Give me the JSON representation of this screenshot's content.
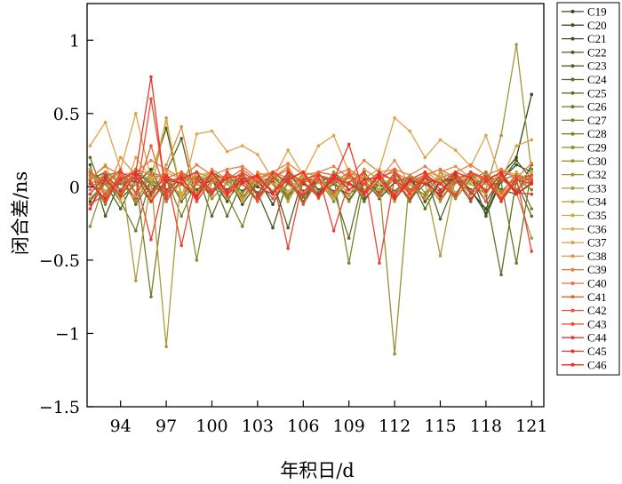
{
  "chart_data": {
    "type": "line",
    "xlabel": "年积日/d",
    "ylabel": "闭合差/ns",
    "xlim": [
      91.8,
      121.8
    ],
    "ylim": [
      -1.5,
      1.25
    ],
    "xticks": [
      94,
      97,
      100,
      103,
      106,
      109,
      112,
      115,
      118,
      121
    ],
    "xtick_labels": [
      "94",
      "97",
      "100",
      "103",
      "106",
      "109",
      "112",
      "115",
      "118",
      "121"
    ],
    "yticks": [
      -1.5,
      -1,
      -0.5,
      0,
      0.5,
      1
    ],
    "ytick_labels": [
      "−1.5",
      "−1",
      "−0.5",
      "0",
      "0.5",
      "1"
    ],
    "legend_position": "right",
    "x": [
      92,
      93,
      94,
      95,
      96,
      97,
      98,
      99,
      100,
      101,
      102,
      103,
      104,
      105,
      106,
      107,
      108,
      109,
      110,
      111,
      112,
      113,
      114,
      115,
      116,
      117,
      118,
      119,
      120,
      121
    ],
    "series": [
      {
        "name": "C19",
        "color": "#2f4a1a",
        "values": [
          0.12,
          -0.05,
          0.08,
          0.03,
          -0.1,
          0.05,
          0.02,
          -0.08,
          0.1,
          0.04,
          -0.03,
          0.06,
          -0.12,
          0.08,
          0.02,
          -0.05,
          0.1,
          -0.02,
          0.05,
          -0.08,
          0.03,
          0.07,
          -0.1,
          0.04,
          0.06,
          -0.03,
          -0.15,
          0.08,
          0.2,
          0.63
        ]
      },
      {
        "name": "C20",
        "color": "#374f1d",
        "values": [
          -0.1,
          0.06,
          -0.04,
          0.1,
          0.02,
          -0.06,
          0.08,
          -0.02,
          0.05,
          -0.1,
          0.07,
          0.0,
          -0.05,
          0.09,
          -0.03,
          0.04,
          -0.07,
          0.1,
          -0.04,
          0.02,
          -0.09,
          0.05,
          0.03,
          -0.06,
          0.08,
          -0.02,
          -0.18,
          0.05,
          0.15,
          0.1
        ]
      },
      {
        "name": "C21",
        "color": "#3f551f",
        "values": [
          0.05,
          0.1,
          -0.08,
          0.02,
          0.12,
          -0.1,
          0.04,
          0.06,
          -0.05,
          0.08,
          -0.12,
          0.03,
          0.05,
          -0.07,
          0.1,
          -0.02,
          0.04,
          -0.09,
          0.06,
          0.02,
          -0.05,
          0.08,
          -0.1,
          0.03,
          0.05,
          -0.04,
          0.07,
          -0.02,
          -0.05,
          0.15
        ]
      },
      {
        "name": "C22",
        "color": "#475b21",
        "values": [
          0.15,
          -0.2,
          0.05,
          -0.1,
          0.08,
          0.4,
          -0.05,
          0.1,
          -0.08,
          0.03,
          0.06,
          -0.04,
          -0.28,
          0.05,
          -0.1,
          0.08,
          0.02,
          -0.06,
          0.1,
          -0.03,
          0.05,
          -0.08,
          0.02,
          0.06,
          -0.05,
          0.09,
          -0.2,
          0.04,
          0.18,
          0.05
        ]
      },
      {
        "name": "C23",
        "color": "#506223",
        "values": [
          0.08,
          0.02,
          -0.15,
          0.06,
          -0.03,
          0.1,
          0.33,
          -0.1,
          0.05,
          -0.02,
          0.08,
          -0.06,
          0.04,
          -0.28,
          0.07,
          0.03,
          -0.05,
          0.1,
          -0.08,
          0.02,
          0.06,
          -0.04,
          0.09,
          -0.22,
          0.03,
          0.05,
          -0.1,
          0.07,
          -0.05,
          0.02
        ]
      },
      {
        "name": "C24",
        "color": "#596a25",
        "values": [
          -0.05,
          0.08,
          0.1,
          -0.12,
          0.04,
          -0.02,
          0.06,
          0.1,
          -0.2,
          0.05,
          -0.08,
          0.03,
          0.07,
          -0.04,
          0.1,
          -0.06,
          0.02,
          0.08,
          -0.1,
          0.05,
          -0.03,
          0.06,
          -0.15,
          0.04,
          0.08,
          -0.05,
          0.1,
          -0.08,
          0.03,
          -0.2
        ]
      },
      {
        "name": "C25",
        "color": "#626f28",
        "values": [
          0.2,
          -0.08,
          0.05,
          0.1,
          -0.06,
          0.08,
          -0.1,
          0.03,
          0.06,
          -0.2,
          0.04,
          -0.05,
          0.1,
          0.02,
          -0.07,
          0.05,
          -0.03,
          -0.35,
          0.08,
          -0.05,
          0.1,
          -0.02,
          0.06,
          -0.08,
          0.04,
          0.1,
          -0.06,
          -0.6,
          0.05,
          0.08
        ]
      },
      {
        "name": "C26",
        "color": "#6b772a",
        "values": [
          0.1,
          0.04,
          -0.1,
          -0.3,
          0.06,
          -0.05,
          0.08,
          0.02,
          -0.04,
          0.1,
          -0.07,
          0.05,
          -0.03,
          0.08,
          -0.1,
          0.04,
          0.06,
          -0.05,
          0.02,
          0.1,
          -0.08,
          0.03,
          0.07,
          -0.04,
          0.05,
          -0.1,
          0.08,
          0.03,
          -0.52,
          0.12
        ]
      },
      {
        "name": "C27",
        "color": "#757d2d",
        "values": [
          -0.15,
          0.1,
          0.02,
          0.06,
          -0.75,
          0.05,
          -0.08,
          0.1,
          -0.03,
          0.06,
          0.02,
          -0.1,
          0.08,
          -0.05,
          0.04,
          0.1,
          -0.06,
          0.03,
          -0.04,
          0.08,
          0.05,
          -0.1,
          0.06,
          0.02,
          -0.07,
          0.1,
          -0.03,
          0.05,
          0.08,
          -0.15
        ]
      },
      {
        "name": "C28",
        "color": "#7f8430",
        "values": [
          0.05,
          -0.12,
          0.08,
          -0.04,
          0.1,
          0.06,
          -0.2,
          0.04,
          0.08,
          -0.06,
          -0.27,
          0.05,
          0.02,
          -0.08,
          0.1,
          -0.03,
          0.06,
          -0.52,
          0.04,
          -0.05,
          0.08,
          0.02,
          -0.06,
          0.1,
          -0.04,
          0.05,
          0.03,
          -0.08,
          0.06,
          -0.02
        ]
      },
      {
        "name": "C29",
        "color": "#8c8a33",
        "values": [
          -0.27,
          0.05,
          -0.08,
          0.12,
          0.03,
          -0.06,
          0.1,
          -0.5,
          0.05,
          0.08,
          -0.04,
          0.06,
          0.1,
          -0.07,
          0.03,
          0.05,
          -0.1,
          0.08,
          0.02,
          -0.06,
          0.1,
          -0.04,
          0.07,
          0.03,
          -0.08,
          0.05,
          0.1,
          -0.03,
          0.06,
          0.04
        ]
      },
      {
        "name": "C30",
        "color": "#9a9036",
        "values": [
          0.08,
          0.02,
          0.1,
          -0.05,
          0.08,
          -0.1,
          0.04,
          0.06,
          -0.08,
          0.03,
          0.1,
          -0.05,
          0.07,
          0.02,
          -0.06,
          0.08,
          0.04,
          -0.1,
          0.05,
          0.02,
          -1.14,
          0.08,
          -0.04,
          0.06,
          0.1,
          -0.05,
          0.03,
          0.07,
          -0.02,
          0.05
        ]
      },
      {
        "name": "C32",
        "color": "#a4953a",
        "values": [
          0.1,
          -0.06,
          0.04,
          -0.1,
          0.08,
          0.03,
          -0.05,
          0.1,
          0.06,
          -0.08,
          0.02,
          0.05,
          -0.03,
          0.09,
          0.04,
          -0.07,
          0.1,
          0.02,
          -0.06,
          0.08,
          -0.04,
          0.06,
          0.03,
          -0.1,
          0.05,
          0.08,
          -0.02,
          0.35,
          0.97,
          0.1
        ]
      },
      {
        "name": "C33",
        "color": "#ae9a3d",
        "values": [
          -0.08,
          0.03,
          0.12,
          -0.64,
          0.05,
          -1.09,
          0.1,
          -0.04,
          0.07,
          0.02,
          -0.05,
          0.09,
          -0.03,
          0.06,
          0.1,
          -0.08,
          0.04,
          0.07,
          -0.02,
          0.05,
          -0.1,
          0.08,
          0.03,
          -0.47,
          0.06,
          0.02,
          -0.05,
          0.1,
          -0.04,
          -0.35
        ]
      },
      {
        "name": "C34",
        "color": "#b89f40",
        "values": [
          0.02,
          0.08,
          -0.05,
          0.1,
          -0.03,
          0.47,
          -0.08,
          0.05,
          0.1,
          -0.04,
          0.07,
          0.02,
          0.06,
          -0.1,
          0.08,
          0.03,
          -0.05,
          0.1,
          0.04,
          -0.07,
          0.06,
          0.02,
          -0.08,
          0.1,
          0.05,
          -0.03,
          0.07,
          -0.1,
          0.04,
          0.06
        ]
      },
      {
        "name": "C35",
        "color": "#c9a744",
        "values": [
          0.12,
          -0.03,
          0.07,
          0.02,
          -0.08,
          0.1,
          0.05,
          -0.06,
          0.03,
          0.08,
          -0.1,
          0.06,
          0.02,
          -0.04,
          0.1,
          0.07,
          -0.05,
          0.03,
          0.08,
          -0.02,
          0.06,
          -0.08,
          0.1,
          0.04,
          -0.05,
          0.07,
          0.02,
          -0.06,
          0.1,
          0.03
        ]
      },
      {
        "name": "C36",
        "color": "#d9ad48",
        "values": [
          0.05,
          0.15,
          -0.1,
          0.2,
          0.06,
          0.45,
          -0.05,
          0.08,
          0.1,
          -0.06,
          0.04,
          0.08,
          0.1,
          -0.03,
          0.06,
          0.05,
          -0.08,
          0.1,
          0.04,
          0.02,
          0.06,
          -0.05,
          0.1,
          0.07,
          -0.04,
          0.03,
          0.08,
          -0.06,
          0.05,
          0.1
        ]
      },
      {
        "name": "C37",
        "color": "#e0a248",
        "values": [
          0.28,
          0.44,
          0.12,
          0.5,
          0.05,
          0.1,
          -0.08,
          0.36,
          0.38,
          0.24,
          0.28,
          0.22,
          0.05,
          0.25,
          0.08,
          0.28,
          0.35,
          0.1,
          0.06,
          0.12,
          0.47,
          0.38,
          0.2,
          0.32,
          0.25,
          0.14,
          0.35,
          0.05,
          0.28,
          0.32
        ]
      },
      {
        "name": "C38",
        "color": "#e39044",
        "values": [
          0.1,
          -0.05,
          0.2,
          0.08,
          -0.1,
          0.15,
          0.41,
          -0.06,
          0.12,
          0.05,
          -0.08,
          0.1,
          0.06,
          0.14,
          -0.04,
          0.1,
          0.08,
          -0.06,
          0.12,
          0.05,
          0.18,
          0.02,
          -0.08,
          0.1,
          0.14,
          0.06,
          -0.04,
          0.12,
          0.08,
          0.05
        ]
      },
      {
        "name": "C39",
        "color": "#e57f40",
        "values": [
          0.06,
          0.14,
          0.08,
          0.1,
          0.18,
          0.12,
          0.06,
          0.15,
          0.08,
          0.12,
          0.14,
          0.06,
          0.1,
          0.16,
          0.08,
          0.1,
          0.14,
          0.06,
          0.18,
          0.1,
          0.12,
          0.08,
          0.14,
          0.06,
          0.1,
          0.15,
          0.08,
          0.12,
          0.06,
          0.16
        ]
      },
      {
        "name": "C40",
        "color": "#e76f3d",
        "values": [
          -0.02,
          0.1,
          0.04,
          0.12,
          0.08,
          0.06,
          0.1,
          0.02,
          0.08,
          0.05,
          0.12,
          0.04,
          0.1,
          0.06,
          0.03,
          0.1,
          0.08,
          0.12,
          0.05,
          0.07,
          0.1,
          0.04,
          0.08,
          0.12,
          0.06,
          0.09,
          0.05,
          0.1,
          0.07,
          0.04
        ]
      },
      {
        "name": "C41",
        "color": "#e95f3a",
        "values": [
          0.1,
          0.02,
          0.12,
          -0.04,
          0.28,
          -0.06,
          0.1,
          0.04,
          -0.02,
          0.08,
          0.05,
          -0.1,
          0.06,
          0.12,
          -0.04,
          0.08,
          0.03,
          0.1,
          -0.06,
          0.05,
          0.12,
          -0.03,
          0.08,
          0.02,
          -0.05,
          0.1,
          0.06,
          -0.04,
          0.08,
          0.05
        ]
      },
      {
        "name": "C42",
        "color": "#eb5036",
        "values": [
          -0.12,
          -0.05,
          0.06,
          -0.08,
          0.6,
          -0.04,
          0.08,
          -0.1,
          0.05,
          -0.06,
          0.1,
          0.03,
          -0.08,
          0.06,
          -0.12,
          0.05,
          -0.04,
          0.08,
          0.02,
          -0.06,
          0.1,
          -0.05,
          0.06,
          -0.08,
          0.03,
          0.07,
          -0.1,
          0.05,
          -0.02,
          0.08
        ]
      },
      {
        "name": "C43",
        "color": "#ec4233",
        "values": [
          0.04,
          -0.1,
          0.1,
          0.05,
          -0.36,
          0.08,
          -0.4,
          0.06,
          -0.05,
          0.1,
          0.02,
          -0.08,
          0.06,
          -0.42,
          0.05,
          0.08,
          -0.3,
          0.03,
          0.1,
          -0.52,
          0.06,
          -0.05,
          0.08,
          0.02,
          -0.06,
          0.1,
          0.04,
          -0.08,
          0.06,
          -0.44
        ]
      },
      {
        "name": "C44",
        "color": "#ed3630",
        "values": [
          -0.05,
          0.08,
          -0.02,
          0.1,
          0.75,
          -0.08,
          0.05,
          0.1,
          -0.04,
          0.06,
          0.08,
          -0.05,
          0.1,
          0.03,
          -0.06,
          0.08,
          0.05,
          0.29,
          -0.05,
          0.1,
          0.04,
          -0.08,
          0.06,
          0.02,
          0.1,
          -0.04,
          0.07,
          -0.1,
          0.05,
          0.02
        ]
      },
      {
        "name": "C45",
        "color": "#ed2c2e",
        "values": [
          0.02,
          -0.08,
          0.05,
          0.1,
          -0.04,
          0.07,
          0.02,
          -0.06,
          0.1,
          -0.03,
          0.05,
          0.08,
          -0.05,
          0.1,
          0.03,
          -0.07,
          0.06,
          0.02,
          -0.04,
          0.08,
          -0.06,
          0.05,
          0.1,
          -0.02,
          0.06,
          -0.08,
          0.04,
          0.1,
          -0.05,
          0.03
        ]
      },
      {
        "name": "C46",
        "color": "#ee2a2b",
        "values": [
          -0.15,
          0.05,
          -0.06,
          0.08,
          -0.1,
          0.04,
          0.06,
          -0.08,
          0.1,
          -0.05,
          0.03,
          0.07,
          -0.04,
          0.05,
          0.1,
          -0.06,
          0.08,
          -0.02,
          0.05,
          0.06,
          -0.08,
          0.04,
          0.02,
          -0.05,
          0.1,
          0.06,
          -0.03,
          0.08,
          -0.04,
          -0.05
        ]
      }
    ]
  }
}
